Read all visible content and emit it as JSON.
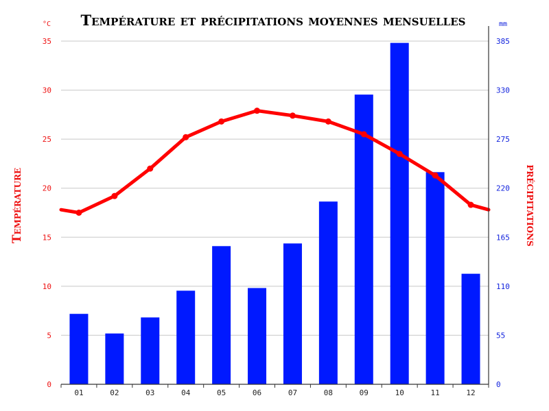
{
  "chart_data": {
    "type": "bar+line",
    "title": "Température et précipitations moyennes mensuelles",
    "categories": [
      "01",
      "02",
      "03",
      "04",
      "05",
      "06",
      "07",
      "08",
      "09",
      "10",
      "11",
      "12"
    ],
    "left_axis": {
      "label": "Température",
      "unit": "°C",
      "ticks": [
        "0",
        "5",
        "10",
        "15",
        "20",
        "25",
        "30",
        "35"
      ],
      "ylim": [
        0,
        35
      ],
      "color": "#ee1111"
    },
    "right_axis": {
      "label": "précipitations",
      "unit": "mm",
      "ticks": [
        "0",
        "55",
        "110",
        "165",
        "220",
        "275",
        "330",
        "385"
      ],
      "ylim": [
        0,
        385
      ],
      "color": "#1122dd"
    },
    "series": [
      {
        "name": "Précipitations",
        "type": "bar",
        "axis": "right",
        "color": "#0019ff",
        "values": [
          79,
          57,
          75,
          105,
          155,
          108,
          158,
          205,
          325,
          383,
          238,
          124
        ]
      },
      {
        "name": "Température",
        "type": "line",
        "axis": "left",
        "color": "#ff0000",
        "values": [
          17.5,
          19.2,
          22.0,
          25.2,
          26.8,
          27.9,
          27.4,
          26.8,
          25.5,
          23.5,
          21.3,
          18.3
        ],
        "left_edge_value": 17.8,
        "right_edge_value": 17.8
      }
    ],
    "grid": true,
    "legend": "none"
  }
}
